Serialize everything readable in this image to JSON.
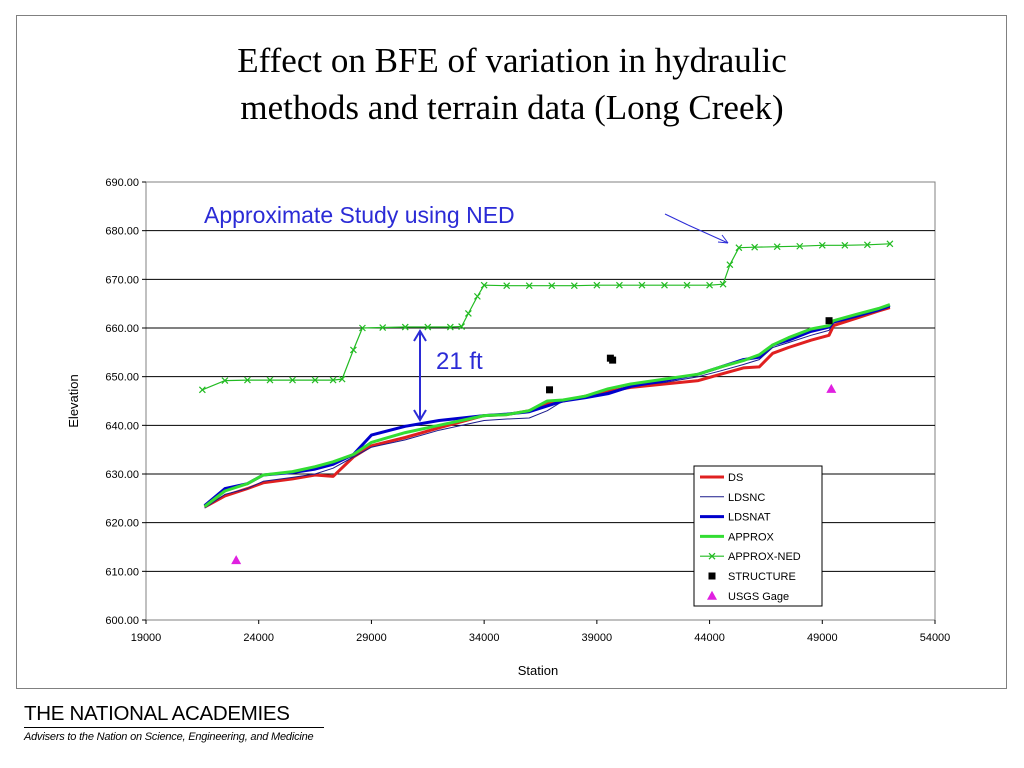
{
  "slide": {
    "title": "Effect on BFE of variation in hydraulic\nmethods and terrain data (Long Creek)"
  },
  "footer": {
    "org_name": "THE NATIONAL ACADEMIES",
    "tagline": "Advisers to the Nation on Science, Engineering, and Medicine"
  },
  "annotations": {
    "approx_study": "Approximate Study using NED",
    "difference": "21 ft",
    "color": "#2B2BD6"
  },
  "chart_data": {
    "type": "line",
    "title": "",
    "xlabel": "Station",
    "ylabel": "Elevation",
    "xlim": [
      19000,
      54000
    ],
    "ylim": [
      600,
      690
    ],
    "x_ticks": [
      "19000",
      "24000",
      "29000",
      "34000",
      "39000",
      "44000",
      "49000",
      "54000"
    ],
    "y_ticks": [
      "600.00",
      "610.00",
      "620.00",
      "630.00",
      "640.00",
      "650.00",
      "660.00",
      "670.00",
      "680.00",
      "690.00"
    ],
    "grid": "horizontal",
    "legend_position": "bottom-right",
    "series": [
      {
        "name": "DS",
        "color": "#E02020",
        "marker": "none",
        "x": [
          21600,
          22500,
          23500,
          24200,
          25500,
          26500,
          27300,
          28200,
          29000,
          30500,
          32000,
          34000,
          35000,
          36000,
          36800,
          37500,
          38500,
          39500,
          40500,
          42000,
          43500,
          44500,
          45500,
          46200,
          46800,
          47500,
          48500,
          49300,
          49500,
          50500,
          51500,
          52000
        ],
        "y": [
          623.2,
          625.5,
          627.0,
          628.2,
          629.0,
          629.8,
          629.5,
          633.5,
          635.8,
          637.5,
          639.5,
          642.0,
          642.2,
          643.0,
          644.5,
          645.0,
          646.0,
          647.0,
          647.8,
          648.5,
          649.2,
          650.5,
          651.8,
          652.0,
          654.8,
          656.0,
          657.5,
          658.5,
          660.5,
          662.0,
          663.5,
          664.2
        ]
      },
      {
        "name": "LDSNC",
        "color": "#1A1A8C",
        "marker": "none",
        "x": [
          21600,
          22500,
          23500,
          24200,
          25500,
          26500,
          27300,
          28200,
          29000,
          30500,
          32000,
          34000,
          35000,
          36000,
          36800,
          37500,
          38500,
          39500,
          40500,
          42000,
          43500,
          44500,
          45500,
          46200,
          46800,
          47500,
          48500,
          49300,
          49500,
          50500,
          51500,
          52000
        ],
        "y": [
          623.0,
          625.8,
          627.0,
          628.5,
          629.3,
          630.0,
          631.2,
          633.5,
          635.5,
          637.0,
          639.0,
          641.0,
          641.3,
          641.5,
          643.0,
          645.0,
          645.8,
          646.8,
          648.0,
          648.8,
          650.0,
          651.2,
          652.5,
          653.5,
          656.0,
          657.0,
          658.5,
          659.5,
          661.0,
          662.2,
          663.5,
          664.3
        ]
      },
      {
        "name": "LDSNAT",
        "color": "#0000CC",
        "marker": "none",
        "x": [
          21600,
          22500,
          23500,
          24200,
          25500,
          26500,
          27300,
          28200,
          29000,
          30500,
          32000,
          34000,
          35000,
          36000,
          36800,
          37500,
          38500,
          39500,
          40500,
          42000,
          43500,
          44500,
          45500,
          46200,
          46800,
          47500,
          48500,
          49300,
          49500,
          50500,
          51500,
          52000
        ],
        "y": [
          623.5,
          627.0,
          628.0,
          629.8,
          630.3,
          631.0,
          632.0,
          634.0,
          638.0,
          639.8,
          641.0,
          642.0,
          642.3,
          642.8,
          644.0,
          645.0,
          645.7,
          646.5,
          648.0,
          649.2,
          650.5,
          652.0,
          653.5,
          654.0,
          656.5,
          657.5,
          659.3,
          660.2,
          661.3,
          662.5,
          663.8,
          664.6
        ]
      },
      {
        "name": "APPROX",
        "color": "#33DD33",
        "marker": "none",
        "x": [
          21600,
          22500,
          23500,
          24200,
          25500,
          26500,
          27300,
          28200,
          29000,
          30500,
          32000,
          34000,
          35000,
          36000,
          36800,
          37500,
          38500,
          39500,
          40500,
          42000,
          43500,
          44500,
          45500,
          46200,
          46800,
          47500,
          48500,
          49300,
          49500,
          50500,
          51500,
          52000
        ],
        "y": [
          623.3,
          626.5,
          628.0,
          629.8,
          630.5,
          631.5,
          632.5,
          634.0,
          636.5,
          638.5,
          640.0,
          642.0,
          642.2,
          643.0,
          645.0,
          645.2,
          646.0,
          647.5,
          648.5,
          649.5,
          650.5,
          652.0,
          653.3,
          654.5,
          656.5,
          658.0,
          659.8,
          660.5,
          661.5,
          662.8,
          664.0,
          664.8
        ]
      },
      {
        "name": "APPROX-NED",
        "color": "#22BB22",
        "marker": "x",
        "x": [
          21500,
          22500,
          23500,
          24500,
          25500,
          26500,
          27300,
          27700,
          28200,
          28600,
          29500,
          30500,
          31500,
          32500,
          33000,
          33300,
          33700,
          34000,
          35000,
          36000,
          37000,
          38000,
          39000,
          40000,
          41000,
          42000,
          43000,
          44000,
          44600,
          44900,
          45300,
          46000,
          47000,
          48000,
          49000,
          50000,
          51000,
          52000
        ],
        "y": [
          647.3,
          649.2,
          649.3,
          649.3,
          649.3,
          649.3,
          649.3,
          649.5,
          655.5,
          660.0,
          660.1,
          660.2,
          660.2,
          660.2,
          660.3,
          663.0,
          666.5,
          668.8,
          668.7,
          668.7,
          668.7,
          668.7,
          668.8,
          668.8,
          668.8,
          668.8,
          668.8,
          668.8,
          669.0,
          673.0,
          676.5,
          676.6,
          676.7,
          676.8,
          677.0,
          677.0,
          677.1,
          677.3
        ]
      },
      {
        "name": "STRUCTURE",
        "color": "#000000",
        "marker": "square",
        "x": [
          36900,
          39600,
          39700,
          49300
        ],
        "y": [
          647.3,
          653.8,
          653.4,
          661.5
        ]
      },
      {
        "name": "USGS Gage",
        "color": "#E020E0",
        "marker": "triangle",
        "x": [
          23000,
          49400
        ],
        "y": [
          612.3,
          647.5
        ]
      }
    ]
  }
}
